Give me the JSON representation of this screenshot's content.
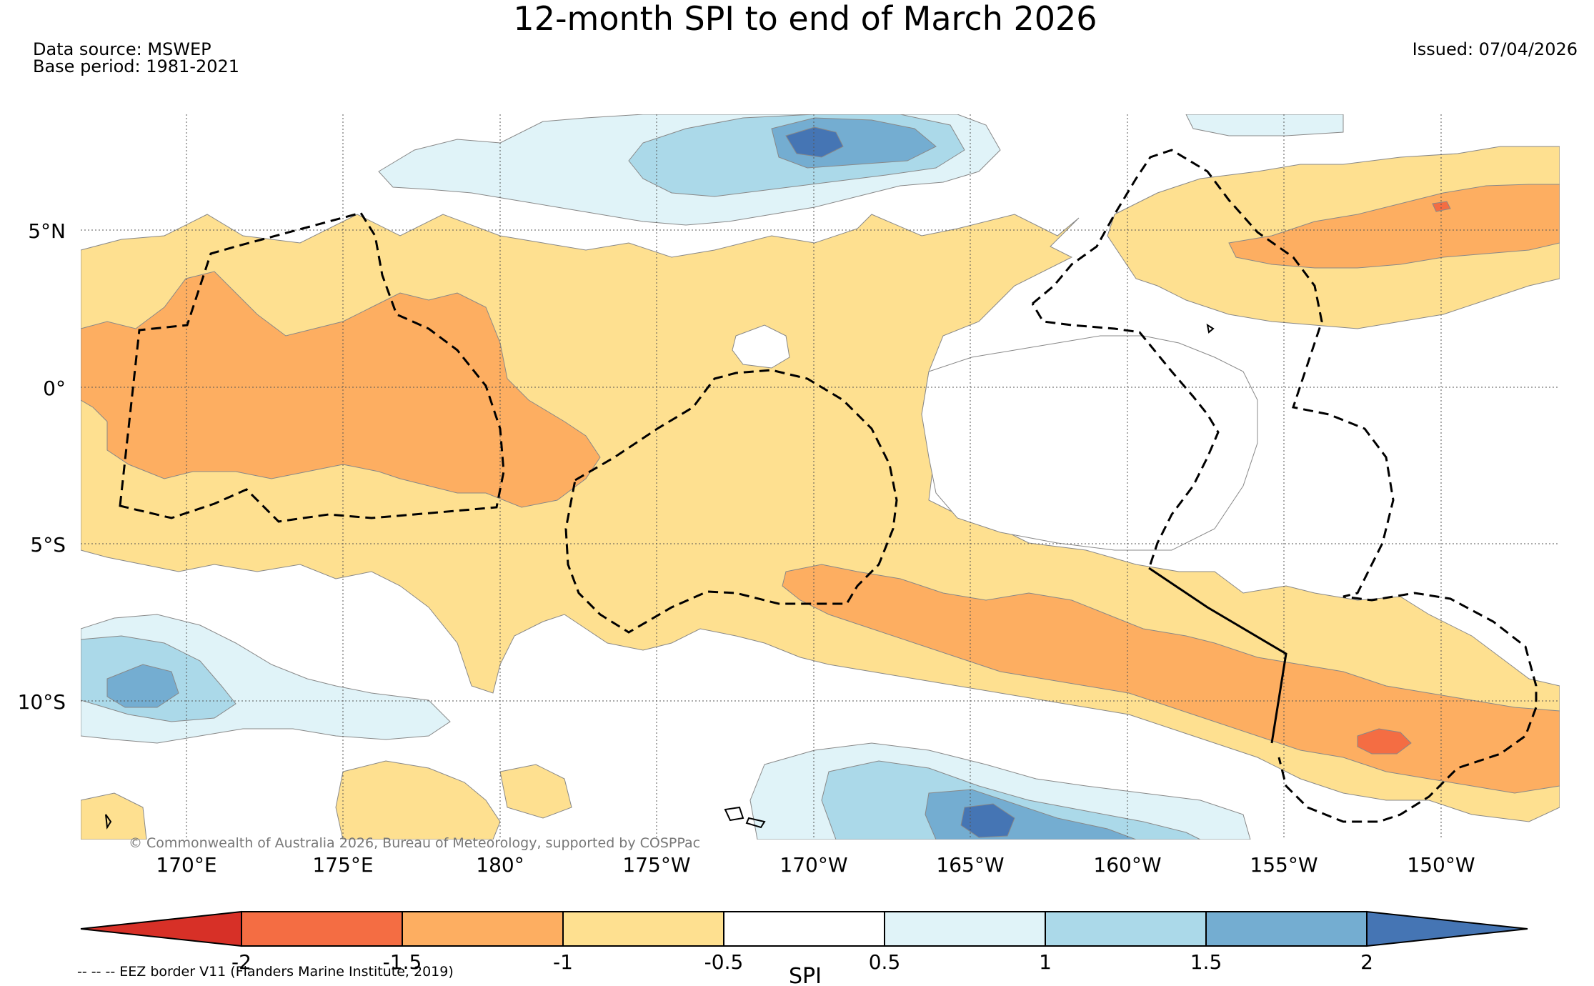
{
  "title": "12-month SPI to end of March 2026",
  "data_source": "Data source: MSWEP",
  "base_period": "Base period: 1981-2021",
  "issued": "Issued: 07/04/2026",
  "copyright": "© Commonwealth of Australia 2026, Bureau of Meteorology, supported by COSPPac",
  "eez_legend": "-- -- -- EEZ border V11 (Flanders Marine Institute, 2019)",
  "map": {
    "lon_labels": [
      "170°E",
      "175°E",
      "180°",
      "175°W",
      "170°W",
      "165°W",
      "160°W",
      "155°W",
      "150°W"
    ],
    "lat_labels": [
      "5°N",
      "0°",
      "5°S",
      "10°S"
    ]
  },
  "colorbar": {
    "label": "SPI",
    "ticks": [
      "-2",
      "-1.5",
      "-1",
      "-0.5",
      "0.5",
      "1",
      "1.5",
      "2"
    ],
    "colors": {
      "below_-2": "#d73027",
      "-2_to_-1.5": "#f46d43",
      "-1.5_to_-1": "#fdae61",
      "-1_to_-0.5": "#fee090",
      "-0.5_to_0.5": "#ffffff",
      "0.5_to_1": "#e0f3f8",
      "1_to_1.5": "#abd9e9",
      "1.5_to_2": "#74add1",
      "above_2": "#4575b4"
    }
  }
}
